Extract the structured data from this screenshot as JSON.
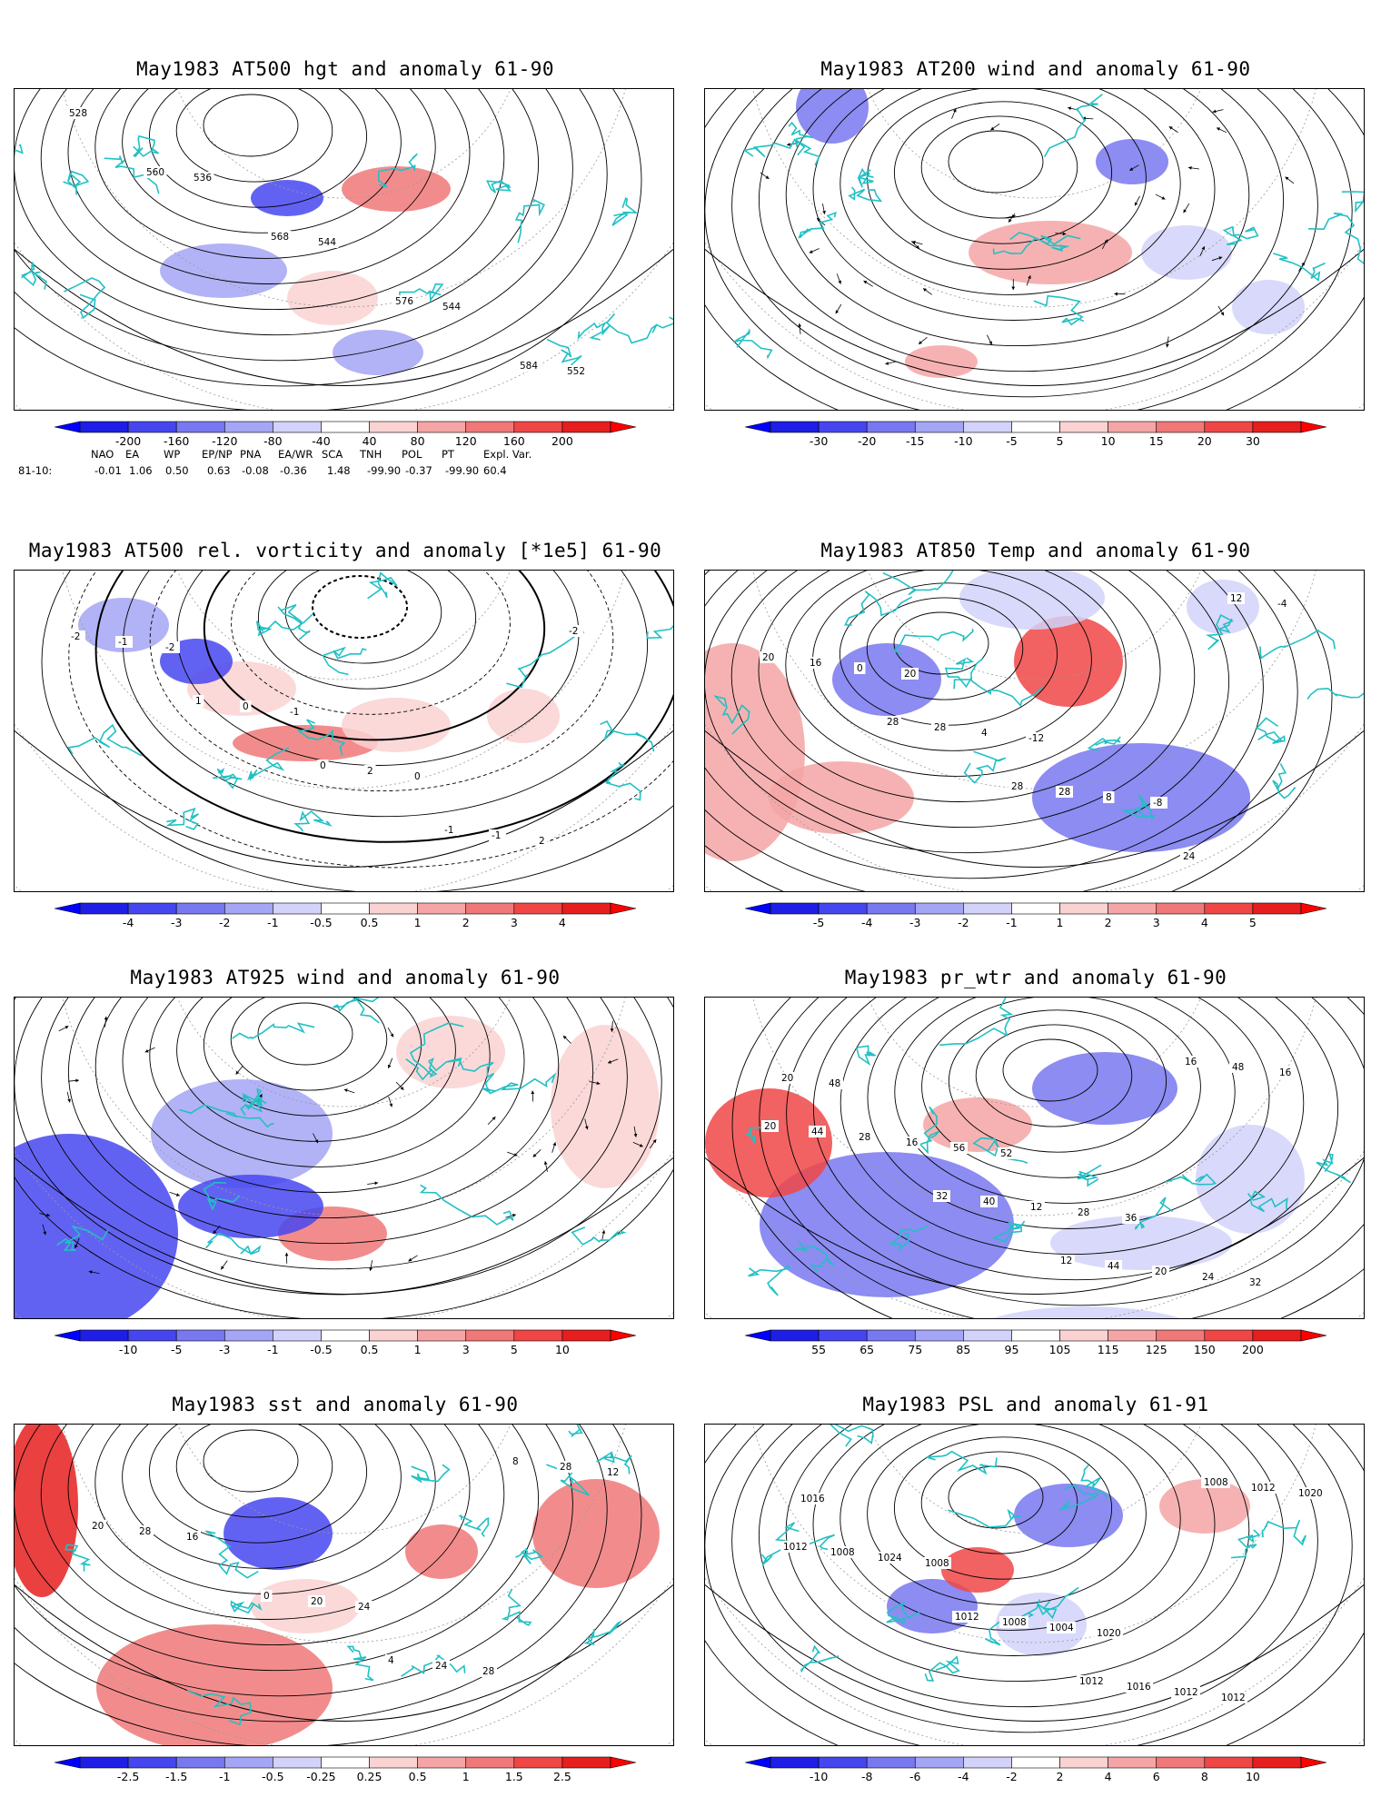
{
  "panels": [
    {
      "title": "May1983 AT500 hgt and anomaly 61-90",
      "colorbar": {
        "labels": [
          "-200",
          "-160",
          "-120",
          "-80",
          "-40",
          "40",
          "80",
          "120",
          "160",
          "200"
        ]
      },
      "contour_labels": [
        "528",
        "536",
        "544",
        "544",
        "552",
        "560",
        "568",
        "576",
        "584"
      ]
    },
    {
      "title": "May1983 AT200 wind and anomaly 61-90",
      "colorbar": {
        "labels": [
          "-30",
          "-20",
          "-15",
          "-10",
          "-5",
          "5",
          "10",
          "15",
          "20",
          "30"
        ]
      },
      "contour_labels": []
    },
    {
      "title": "May1983 AT500 rel. vorticity and anomaly [*1e5] 61-90",
      "colorbar": {
        "labels": [
          "-4",
          "-3",
          "-2",
          "-1",
          "-0.5",
          "0.5",
          "1",
          "2",
          "3",
          "4"
        ]
      },
      "contour_labels": [
        "-2",
        "-1",
        "0",
        "2",
        "-1",
        "0",
        "2",
        "-1",
        "-2",
        "1",
        "0",
        "-1",
        "-2"
      ]
    },
    {
      "title": "May1983 AT850 Temp and anomaly 61-90",
      "colorbar": {
        "labels": [
          "-5",
          "-4",
          "-3",
          "-2",
          "-1",
          "1",
          "2",
          "3",
          "4",
          "5"
        ]
      },
      "contour_labels": [
        "20",
        "-12",
        "-8",
        "-4",
        "0",
        "4",
        "8",
        "12",
        "16",
        "28",
        "28",
        "24",
        "20",
        "28",
        "28"
      ]
    },
    {
      "title": "May1983 AT925 wind and anomaly 61-90",
      "colorbar": {
        "labels": [
          "-10",
          "-5",
          "-3",
          "-1",
          "-0.5",
          "0.5",
          "1",
          "3",
          "5",
          "10"
        ]
      },
      "contour_labels": []
    },
    {
      "title": "May1983 pr_wtr and anomaly 61-90",
      "colorbar": {
        "labels": [
          "55",
          "65",
          "75",
          "85",
          "95",
          "105",
          "115",
          "125",
          "150",
          "200"
        ]
      },
      "contour_labels": [
        "52",
        "36",
        "32",
        "48",
        "56",
        "28",
        "24",
        "20",
        "16",
        "12",
        "20",
        "16",
        "28",
        "40",
        "44",
        "48",
        "44",
        "32",
        "12",
        "16",
        "20"
      ]
    },
    {
      "title": "May1983 sst and anomaly 61-90",
      "colorbar": {
        "labels": [
          "-2.5",
          "-1.5",
          "-1",
          "-0.5",
          "-0.25",
          "0.25",
          "0.5",
          "1",
          "1.5",
          "2.5"
        ]
      },
      "contour_labels": [
        "24",
        "28",
        "12",
        "16",
        "20",
        "24",
        "28",
        "28",
        "0",
        "4",
        "8",
        "20"
      ]
    },
    {
      "title": "May1983 PSL and anomaly 61-91",
      "colorbar": {
        "labels": [
          "-10",
          "-8",
          "-6",
          "-4",
          "-2",
          "2",
          "4",
          "6",
          "8",
          "10"
        ]
      },
      "contour_labels": [
        "1020",
        "1012",
        "1016",
        "1008",
        "1004",
        "1012",
        "1020",
        "1024",
        "1008",
        "1016",
        "1012",
        "1008",
        "1012",
        "1012",
        "1008",
        "1012"
      ]
    }
  ],
  "teleconnection": {
    "headers": [
      "NAO",
      "EA",
      "WP",
      "EP/NP",
      "PNA",
      "EA/WR",
      "SCA",
      "TNH",
      "POL",
      "PT",
      "Expl. Var."
    ],
    "row_label": "81-10:",
    "values": [
      "-0.01",
      "1.06",
      "0.50",
      "0.63",
      "-0.08",
      "-0.36",
      "1.48",
      "-99.90",
      "-0.37",
      "-99.90",
      "60.4"
    ]
  },
  "colors": {
    "coast": "#22c0c4",
    "blue_scale": [
      "#1e1ee6",
      "#4646f0",
      "#7878f0",
      "#a5a5f5",
      "#d2d2fa"
    ],
    "red_scale": [
      "#fad2d2",
      "#f5a5a5",
      "#f07878",
      "#f04646",
      "#e61e1e"
    ]
  }
}
